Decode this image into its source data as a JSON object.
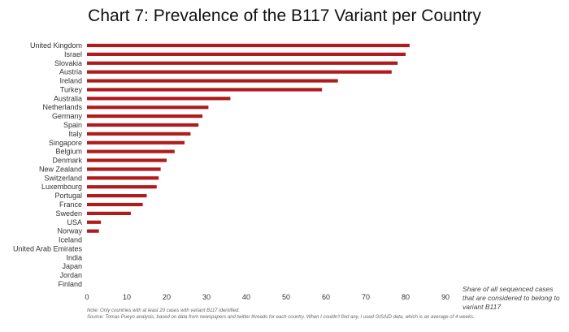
{
  "chart_data": {
    "type": "bar",
    "orientation": "horizontal",
    "title": "Chart 7: Prevalence of the B117 Variant per Country",
    "xlabel": "Share of all sequenced cases that are considered to belong to variant B117",
    "ylabel": "",
    "xlim": [
      0,
      90
    ],
    "xticks": [
      0,
      10,
      20,
      30,
      40,
      50,
      60,
      70,
      80,
      90
    ],
    "grid": false,
    "bar_color": "#b01c1c",
    "categories": [
      "United Kingdom",
      "Israel",
      "Slovakia",
      "Austria",
      "Ireland",
      "Turkey",
      "Australia",
      "Netherlands",
      "Germany",
      "Spain",
      "Italy",
      "Singapore",
      "Belgium",
      "Denmark",
      "New Zealand",
      "Switzerland",
      "Luxembourg",
      "Portugal",
      "France",
      "Sweden",
      "USA",
      "Norway",
      "Iceland",
      "United Arab Emirates",
      "India",
      "Japan",
      "Jordan",
      "Finland"
    ],
    "values": [
      81,
      80,
      78,
      76.5,
      63,
      59,
      36,
      30.5,
      29,
      28,
      26,
      24.5,
      22,
      20,
      18.5,
      18,
      17.5,
      15,
      14,
      11,
      3.5,
      3,
      0,
      0,
      0,
      0,
      0,
      0
    ]
  },
  "notes": {
    "line1": "Note: Only countries with at least 20 cases with variant B117 identified.",
    "line2": "Source: Tomas Pueyo analysis, based on data from newspapers and twitter threads for each country. When I couldn't find any, I used GISAID data, which is an average of 4 weeks."
  }
}
